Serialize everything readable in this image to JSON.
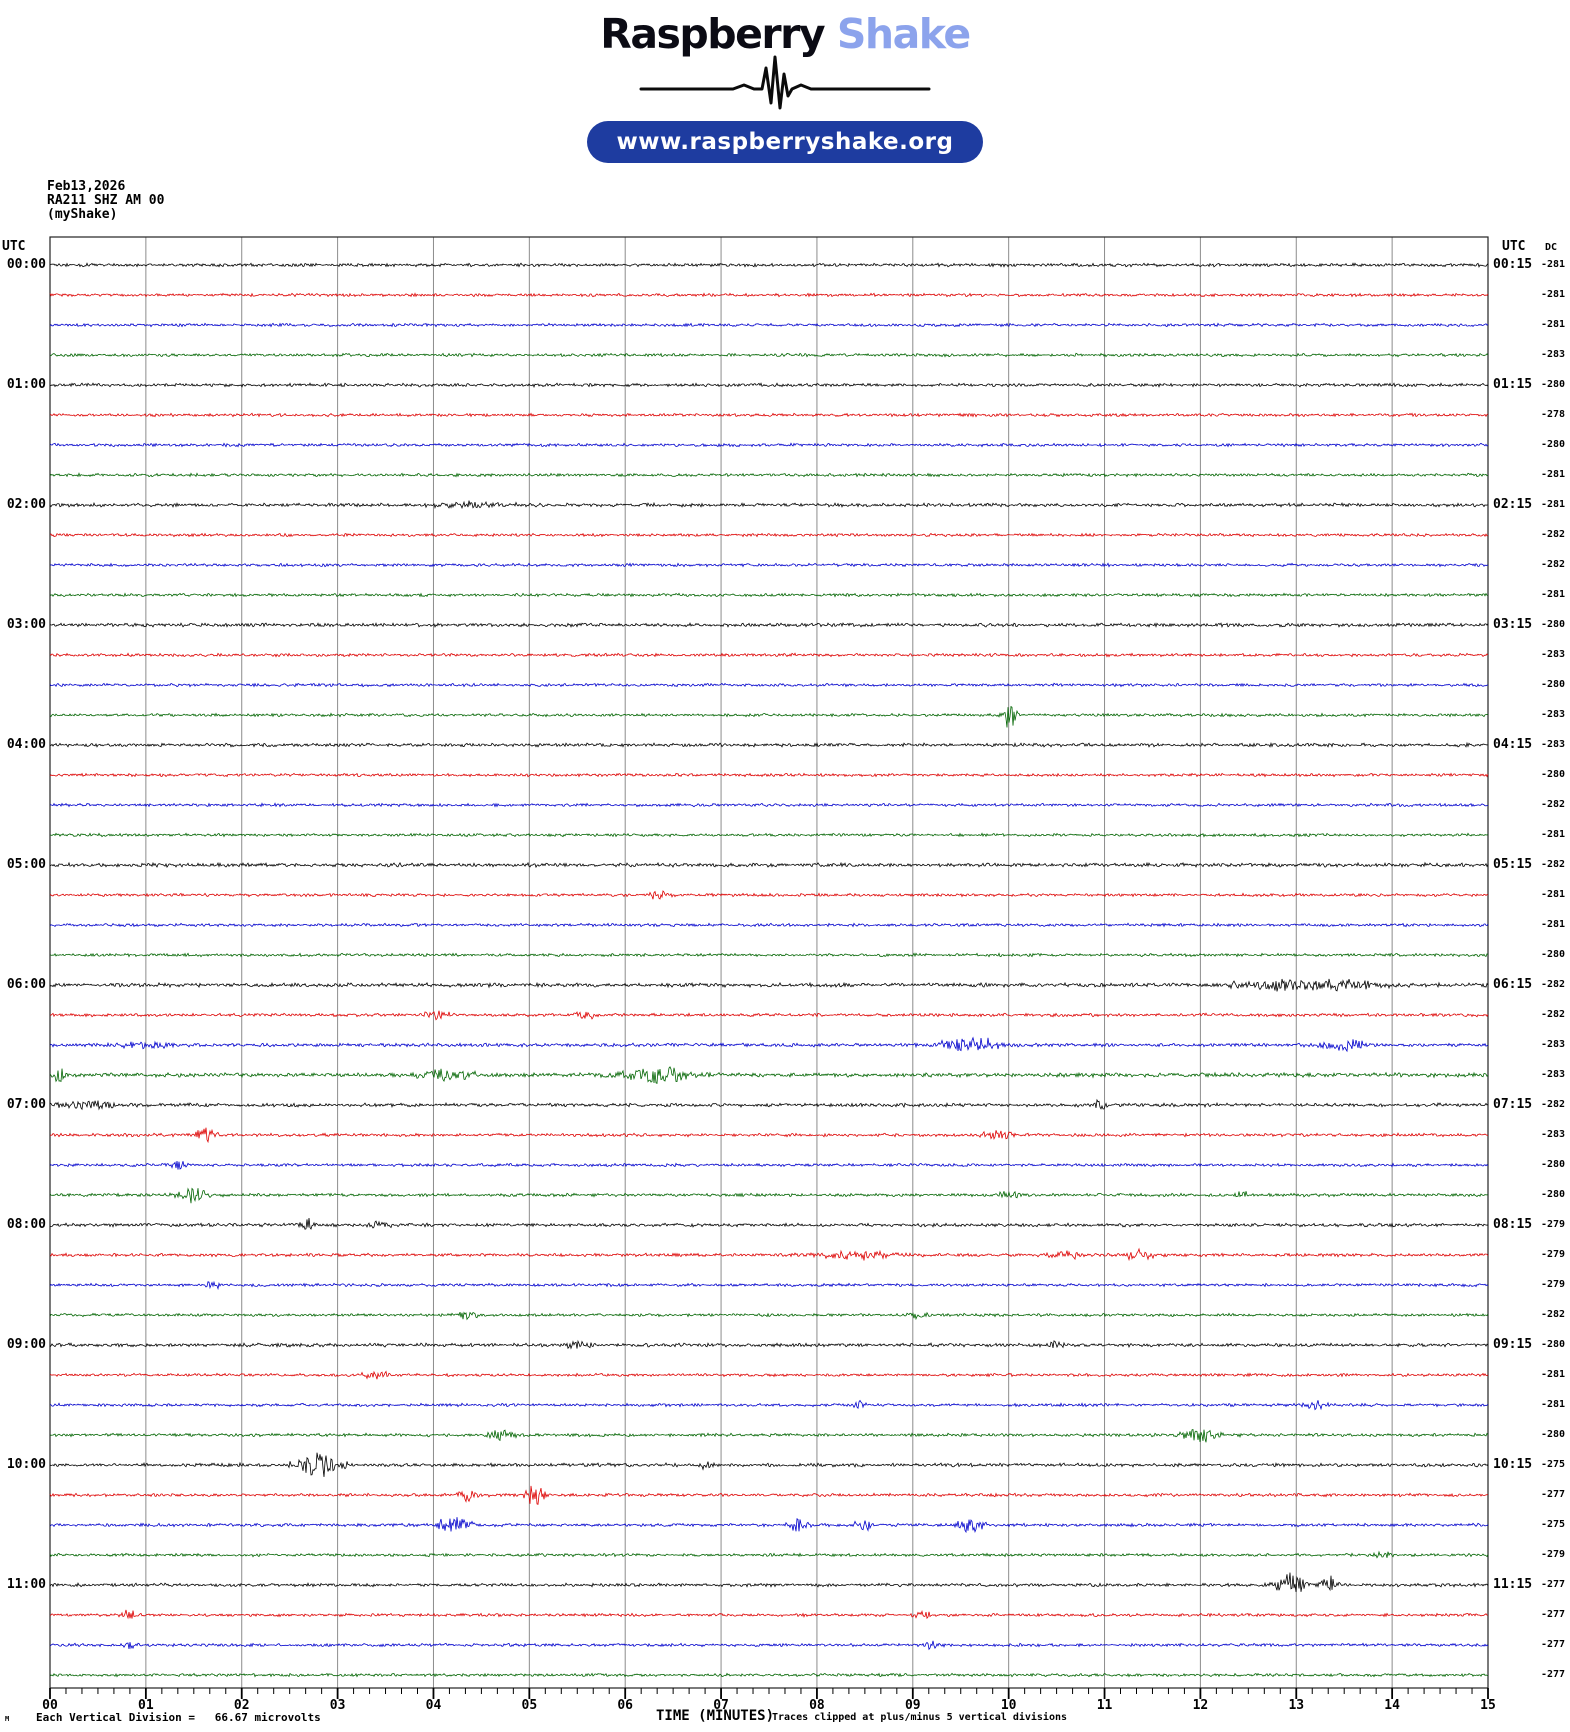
{
  "header": {
    "brand_primary": "Raspberry",
    "brand_secondary": "Shake",
    "website": "www.raspberryshake.org"
  },
  "colors": {
    "brand_secondary": "#8ca3ec",
    "pill_background": "#1e3ca0",
    "pill_text": "#ffffff",
    "grid": "#8c8c8c",
    "trace_black": "#000000",
    "trace_red": "#dd0000",
    "trace_blue": "#0000cc",
    "trace_green": "#006400"
  },
  "station": {
    "date": "Feb13,2026",
    "id_line": "RA211 SHZ AM 00",
    "network": "(myShake)"
  },
  "plot": {
    "utc_left": "UTC",
    "utc_right": "UTC",
    "dc_header": "DC",
    "xlabel": "TIME (MINUTES)",
    "clip_note": "Traces clipped at plus/minus 5 vertical divisions",
    "division_note": "Each Vertical Division =   66.67 microvolts",
    "footnote_marker": "M",
    "minute_labels": [
      "00",
      "01",
      "02",
      "03",
      "04",
      "05",
      "06",
      "07",
      "08",
      "09",
      "10",
      "11",
      "12",
      "13",
      "14",
      "15"
    ]
  },
  "chart_data": {
    "type": "line",
    "title": "Raspberry Shake helicorder — RA211 SHZ AM 00 (myShake), Feb13,2026",
    "xlabel": "TIME (MINUTES)",
    "x_range": [
      0,
      15
    ],
    "minor_tick_seconds": 10,
    "rows_per_hour": 4,
    "row_span_minutes": 15,
    "grid": true,
    "palette": [
      "#000000",
      "#dd0000",
      "#0000cc",
      "#006400"
    ],
    "legend": "each row = 15 minutes; colors cycle black, red, blue, green; left label = row start UTC, right label = row end UTC; dc = DC offset counts",
    "rows": [
      {
        "left": "00:00",
        "right": "00:15",
        "dc": -281,
        "noise": 1.8,
        "events": []
      },
      {
        "left": "",
        "right": "",
        "dc": -281,
        "noise": 1.7,
        "events": []
      },
      {
        "left": "",
        "right": "",
        "dc": -281,
        "noise": 1.7,
        "events": []
      },
      {
        "left": "",
        "right": "",
        "dc": -283,
        "noise": 1.7,
        "events": []
      },
      {
        "left": "01:00",
        "right": "01:15",
        "dc": -280,
        "noise": 1.9,
        "events": []
      },
      {
        "left": "",
        "right": "",
        "dc": -278,
        "noise": 1.7,
        "events": []
      },
      {
        "left": "",
        "right": "",
        "dc": -280,
        "noise": 1.7,
        "events": []
      },
      {
        "left": "",
        "right": "",
        "dc": -281,
        "noise": 1.7,
        "events": []
      },
      {
        "left": "02:00",
        "right": "02:15",
        "dc": -281,
        "noise": 2.0,
        "events": [
          [
            4.4,
            3,
            0.3
          ]
        ]
      },
      {
        "left": "",
        "right": "",
        "dc": -282,
        "noise": 1.7,
        "events": []
      },
      {
        "left": "",
        "right": "",
        "dc": -282,
        "noise": 1.7,
        "events": []
      },
      {
        "left": "",
        "right": "",
        "dc": -281,
        "noise": 1.7,
        "events": []
      },
      {
        "left": "03:00",
        "right": "03:15",
        "dc": -280,
        "noise": 2.0,
        "events": []
      },
      {
        "left": "",
        "right": "",
        "dc": -283,
        "noise": 1.7,
        "events": []
      },
      {
        "left": "",
        "right": "",
        "dc": -280,
        "noise": 1.7,
        "events": []
      },
      {
        "left": "",
        "right": "",
        "dc": -283,
        "noise": 1.7,
        "events": [
          [
            10.02,
            16,
            0.045
          ]
        ]
      },
      {
        "left": "04:00",
        "right": "04:15",
        "dc": -283,
        "noise": 2.0,
        "events": []
      },
      {
        "left": "",
        "right": "",
        "dc": -280,
        "noise": 1.7,
        "events": []
      },
      {
        "left": "",
        "right": "",
        "dc": -282,
        "noise": 1.7,
        "events": []
      },
      {
        "left": "",
        "right": "",
        "dc": -281,
        "noise": 1.7,
        "events": []
      },
      {
        "left": "05:00",
        "right": "05:15",
        "dc": -282,
        "noise": 2.2,
        "events": []
      },
      {
        "left": "",
        "right": "",
        "dc": -281,
        "noise": 1.7,
        "events": [
          [
            6.35,
            5,
            0.07
          ]
        ]
      },
      {
        "left": "",
        "right": "",
        "dc": -281,
        "noise": 1.7,
        "events": []
      },
      {
        "left": "",
        "right": "",
        "dc": -280,
        "noise": 1.7,
        "events": []
      },
      {
        "left": "06:00",
        "right": "06:15",
        "dc": -282,
        "noise": 2.2,
        "events": [
          [
            13.1,
            6,
            0.5
          ]
        ]
      },
      {
        "left": "",
        "right": "",
        "dc": -282,
        "noise": 1.8,
        "events": [
          [
            4.05,
            5,
            0.1
          ],
          [
            5.6,
            4,
            0.1
          ]
        ]
      },
      {
        "left": "",
        "right": "",
        "dc": -283,
        "noise": 2.0,
        "events": [
          [
            1.0,
            4,
            0.2
          ],
          [
            9.62,
            8,
            0.22
          ],
          [
            13.5,
            6,
            0.18
          ]
        ]
      },
      {
        "left": "",
        "right": "",
        "dc": -283,
        "noise": 2.4,
        "events": [
          [
            0.1,
            10,
            0.04
          ],
          [
            4.1,
            6,
            0.22
          ],
          [
            6.35,
            8,
            0.28
          ]
        ]
      },
      {
        "left": "07:00",
        "right": "07:15",
        "dc": -282,
        "noise": 2.0,
        "events": [
          [
            0.45,
            5,
            0.25
          ],
          [
            10.95,
            7,
            0.05
          ]
        ]
      },
      {
        "left": "",
        "right": "",
        "dc": -283,
        "noise": 1.8,
        "events": [
          [
            1.62,
            8,
            0.07
          ],
          [
            9.9,
            5,
            0.12
          ]
        ]
      },
      {
        "left": "",
        "right": "",
        "dc": -280,
        "noise": 1.7,
        "events": [
          [
            1.35,
            5,
            0.06
          ]
        ]
      },
      {
        "left": "",
        "right": "",
        "dc": -280,
        "noise": 1.8,
        "events": [
          [
            1.5,
            7,
            0.12
          ],
          [
            10.0,
            5,
            0.1
          ],
          [
            12.45,
            4,
            0.05
          ]
        ]
      },
      {
        "left": "08:00",
        "right": "08:15",
        "dc": -279,
        "noise": 1.9,
        "events": [
          [
            2.68,
            6,
            0.06
          ],
          [
            3.42,
            5,
            0.08
          ]
        ]
      },
      {
        "left": "",
        "right": "",
        "dc": -279,
        "noise": 1.8,
        "events": [
          [
            8.4,
            4,
            0.35
          ],
          [
            10.6,
            5,
            0.12
          ],
          [
            11.35,
            5,
            0.12
          ]
        ]
      },
      {
        "left": "",
        "right": "",
        "dc": -279,
        "noise": 1.7,
        "events": [
          [
            1.7,
            4,
            0.06
          ]
        ]
      },
      {
        "left": "",
        "right": "",
        "dc": -282,
        "noise": 1.7,
        "events": [
          [
            4.35,
            4,
            0.1
          ],
          [
            9.05,
            3,
            0.1
          ]
        ]
      },
      {
        "left": "09:00",
        "right": "09:15",
        "dc": -280,
        "noise": 2.0,
        "events": [
          [
            5.5,
            4,
            0.12
          ],
          [
            10.5,
            4,
            0.1
          ]
        ]
      },
      {
        "left": "",
        "right": "",
        "dc": -281,
        "noise": 1.7,
        "events": [
          [
            3.4,
            4,
            0.1
          ]
        ]
      },
      {
        "left": "",
        "right": "",
        "dc": -281,
        "noise": 1.7,
        "events": [
          [
            8.45,
            4,
            0.06
          ],
          [
            13.2,
            5,
            0.08
          ]
        ]
      },
      {
        "left": "",
        "right": "",
        "dc": -280,
        "noise": 1.8,
        "events": [
          [
            4.7,
            5,
            0.1
          ],
          [
            12.0,
            9,
            0.13
          ]
        ]
      },
      {
        "left": "10:00",
        "right": "10:15",
        "dc": -275,
        "noise": 2.0,
        "events": [
          [
            2.8,
            12,
            0.18
          ],
          [
            6.85,
            6,
            0.04
          ]
        ]
      },
      {
        "left": "",
        "right": "",
        "dc": -277,
        "noise": 1.8,
        "events": [
          [
            4.35,
            6,
            0.1
          ],
          [
            5.05,
            14,
            0.07
          ]
        ]
      },
      {
        "left": "",
        "right": "",
        "dc": -275,
        "noise": 1.8,
        "events": [
          [
            4.2,
            8,
            0.13
          ],
          [
            7.8,
            7,
            0.07
          ],
          [
            8.5,
            6,
            0.07
          ],
          [
            9.6,
            7,
            0.1
          ]
        ]
      },
      {
        "left": "",
        "right": "",
        "dc": -279,
        "noise": 1.7,
        "events": [
          [
            13.9,
            4,
            0.08
          ]
        ]
      },
      {
        "left": "11:00",
        "right": "11:15",
        "dc": -277,
        "noise": 1.9,
        "events": [
          [
            12.95,
            12,
            0.1
          ],
          [
            13.35,
            8,
            0.07
          ]
        ]
      },
      {
        "left": "",
        "right": "",
        "dc": -277,
        "noise": 1.7,
        "events": [
          [
            0.82,
            6,
            0.05
          ],
          [
            9.1,
            4,
            0.08
          ]
        ]
      },
      {
        "left": "",
        "right": "",
        "dc": -277,
        "noise": 1.7,
        "events": [
          [
            0.82,
            5,
            0.05
          ],
          [
            9.2,
            4,
            0.07
          ]
        ]
      },
      {
        "left": "",
        "right": "",
        "dc": -277,
        "noise": 1.7,
        "events": []
      }
    ]
  }
}
